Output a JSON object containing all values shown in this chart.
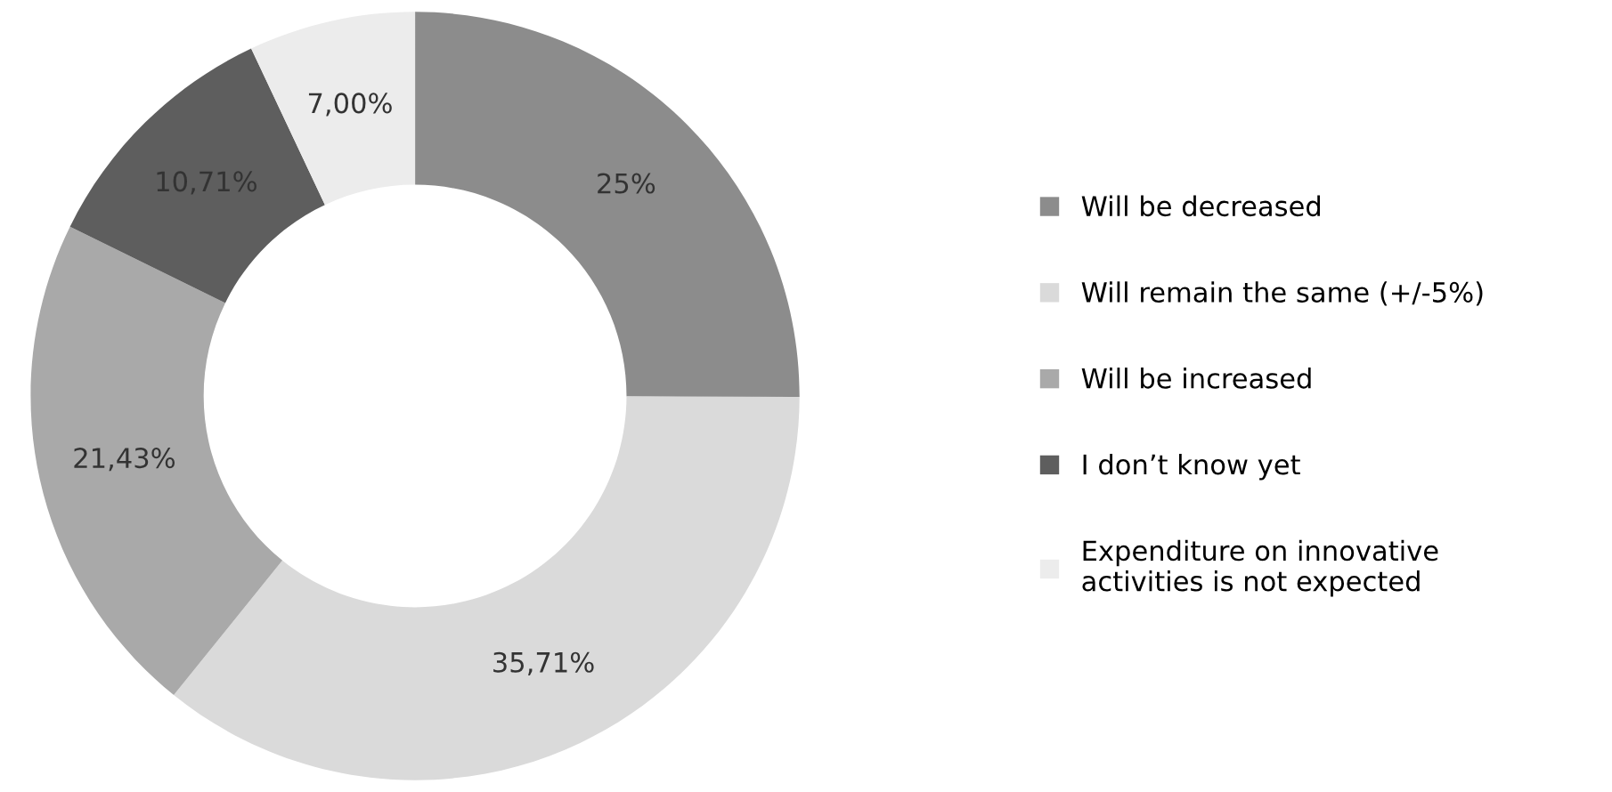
{
  "chart_data": {
    "type": "donut",
    "categories": [
      "Will be decreased",
      "Will remain the same (+/-5%)",
      "Will be increased",
      "I don’t know yet",
      "Expenditure on innovative\nactivities is not expected"
    ],
    "values": [
      25,
      35.71,
      21.43,
      10.71,
      7.0
    ],
    "value_labels": [
      "25%",
      "35,71%",
      "21,43%",
      "10,71%",
      "7,00%"
    ],
    "colors": [
      "#8c8c8c",
      "#dadada",
      "#a9a9a9",
      "#5e5e5e",
      "#ececec"
    ],
    "legend": "right"
  }
}
